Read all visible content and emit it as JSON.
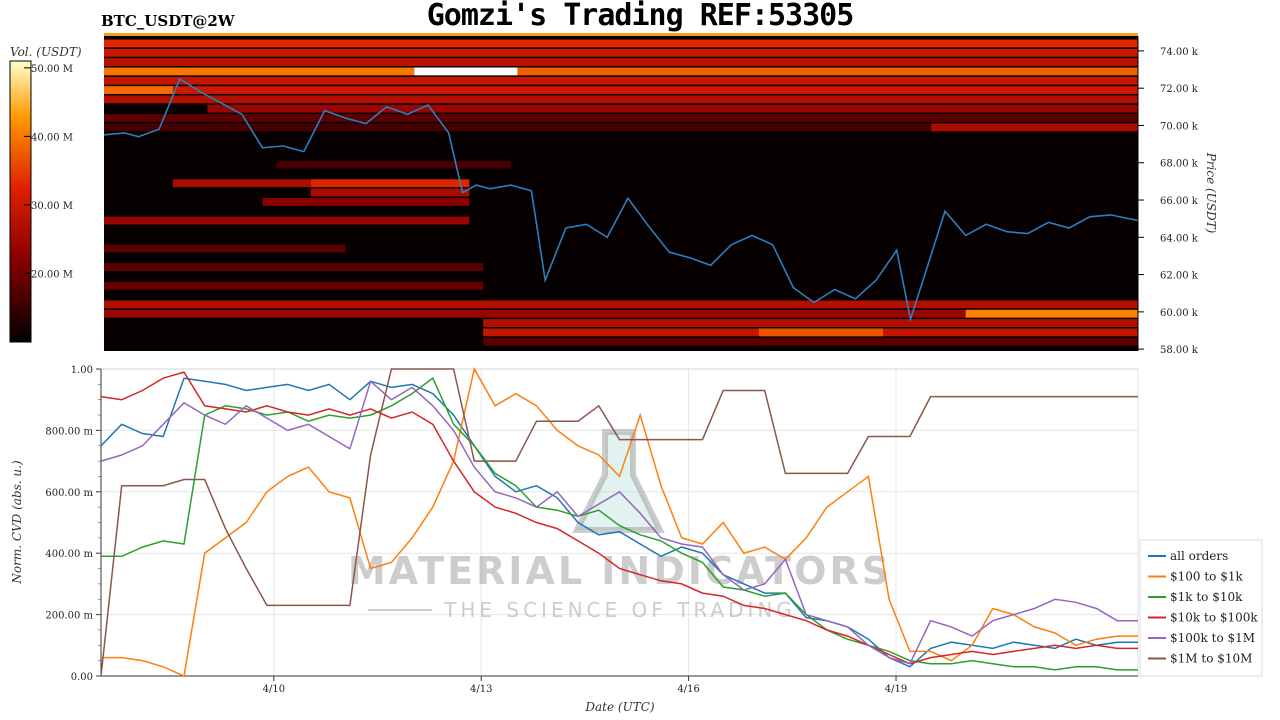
{
  "title": "Gomzi's Trading REF:53305",
  "pair_label": "BTC_USDT@2W",
  "watermark": {
    "line1": "MATERIAL INDICATORS",
    "line2": "THE SCIENCE OF TRADING"
  },
  "colors": {
    "all orders": "#1f77b4",
    "$100 to $1k": "#ff7f0e",
    "$1k to $10k": "#2ca02c",
    "$10k to $100k": "#d62728",
    "$100k to $1M": "#9467bd",
    "$1M to $10M": "#8c564b"
  },
  "chart_data": [
    {
      "type": "heatmap",
      "colorbar": {
        "label": "Vol. (USDT)",
        "ticks": [
          "20.00 M",
          "30.00 M",
          "40.00 M",
          "50.00 M"
        ],
        "tick_values": [
          20,
          30,
          40,
          50
        ],
        "range": [
          10,
          51
        ]
      },
      "ylabel": "Price (USDT)",
      "y_ticks": [
        "58.00 k",
        "60.00 k",
        "62.00 k",
        "64.00 k",
        "66.00 k",
        "68.00 k",
        "70.00 k",
        "72.00 k",
        "74.00 k"
      ],
      "y_tick_values": [
        58,
        60,
        62,
        64,
        66,
        68,
        70,
        72,
        74
      ],
      "ylim": [
        57.9,
        74.8
      ],
      "xlim": [
        7.5,
        22.5
      ],
      "bands": [
        {
          "p": 74.4,
          "t0": 7.5,
          "t1": 22.5,
          "v": 33
        },
        {
          "p": 73.9,
          "t0": 7.5,
          "t1": 22.5,
          "v": 30
        },
        {
          "p": 73.4,
          "t0": 7.5,
          "t1": 22.5,
          "v": 28
        },
        {
          "p": 72.9,
          "t0": 7.5,
          "t1": 12.0,
          "v": 40
        },
        {
          "p": 72.9,
          "t0": 12.0,
          "t1": 13.5,
          "v": 51
        },
        {
          "p": 72.9,
          "t0": 13.5,
          "t1": 22.5,
          "v": 38
        },
        {
          "p": 72.4,
          "t0": 7.5,
          "t1": 22.5,
          "v": 29
        },
        {
          "p": 71.9,
          "t0": 7.5,
          "t1": 8.5,
          "v": 39
        },
        {
          "p": 71.9,
          "t0": 8.5,
          "t1": 22.5,
          "v": 30
        },
        {
          "p": 71.4,
          "t0": 7.5,
          "t1": 22.5,
          "v": 27
        },
        {
          "p": 70.9,
          "t0": 9.0,
          "t1": 22.5,
          "v": 24
        },
        {
          "p": 70.4,
          "t0": 7.5,
          "t1": 22.5,
          "v": 18
        },
        {
          "p": 69.9,
          "t0": 7.5,
          "t1": 22.5,
          "v": 16
        },
        {
          "p": 69.9,
          "t0": 19.5,
          "t1": 22.5,
          "v": 26
        },
        {
          "p": 67.9,
          "t0": 10.0,
          "t1": 13.4,
          "v": 16
        },
        {
          "p": 66.9,
          "t0": 8.5,
          "t1": 10.5,
          "v": 26
        },
        {
          "p": 66.9,
          "t0": 10.5,
          "t1": 12.8,
          "v": 33
        },
        {
          "p": 66.4,
          "t0": 10.5,
          "t1": 12.8,
          "v": 26
        },
        {
          "p": 65.9,
          "t0": 9.8,
          "t1": 12.8,
          "v": 22
        },
        {
          "p": 64.9,
          "t0": 7.5,
          "t1": 12.8,
          "v": 24
        },
        {
          "p": 63.4,
          "t0": 7.5,
          "t1": 11.0,
          "v": 18
        },
        {
          "p": 62.4,
          "t0": 7.5,
          "t1": 13.0,
          "v": 18
        },
        {
          "p": 61.4,
          "t0": 7.5,
          "t1": 13.0,
          "v": 19
        },
        {
          "p": 60.4,
          "t0": 7.5,
          "t1": 22.5,
          "v": 27
        },
        {
          "p": 59.9,
          "t0": 7.5,
          "t1": 22.5,
          "v": 24
        },
        {
          "p": 59.9,
          "t0": 20.0,
          "t1": 22.5,
          "v": 41
        },
        {
          "p": 59.4,
          "t0": 13.0,
          "t1": 22.5,
          "v": 27
        },
        {
          "p": 58.9,
          "t0": 13.0,
          "t1": 22.5,
          "v": 29
        },
        {
          "p": 58.9,
          "t0": 17.0,
          "t1": 18.8,
          "v": 37
        },
        {
          "p": 58.4,
          "t0": 13.0,
          "t1": 22.5,
          "v": 18
        }
      ],
      "price": {
        "t": [
          7.5,
          7.8,
          8.0,
          8.3,
          8.6,
          8.9,
          9.2,
          9.5,
          9.8,
          10.1,
          10.4,
          10.7,
          11.0,
          11.3,
          11.6,
          11.9,
          12.2,
          12.5,
          12.7,
          12.9,
          13.1,
          13.4,
          13.7,
          13.9,
          14.2,
          14.5,
          14.8,
          15.1,
          15.4,
          15.7,
          16.0,
          16.3,
          16.6,
          16.9,
          17.2,
          17.5,
          17.8,
          18.1,
          18.4,
          18.7,
          19.0,
          19.2,
          19.4,
          19.7,
          20.0,
          20.3,
          20.6,
          20.9,
          21.2,
          21.5,
          21.8,
          22.1,
          22.5
        ],
        "v": [
          69.5,
          69.6,
          69.4,
          69.8,
          72.5,
          71.8,
          71.2,
          70.6,
          68.8,
          68.9,
          68.6,
          70.8,
          70.4,
          70.1,
          71.0,
          70.6,
          71.1,
          69.6,
          66.4,
          66.8,
          66.6,
          66.8,
          66.5,
          61.7,
          64.5,
          64.7,
          64.0,
          66.1,
          64.6,
          63.2,
          62.9,
          62.5,
          63.6,
          64.1,
          63.6,
          61.3,
          60.5,
          61.2,
          60.7,
          61.7,
          63.3,
          59.6,
          61.9,
          65.4,
          64.1,
          64.7,
          64.3,
          64.2,
          64.8,
          64.5,
          65.1,
          65.2,
          64.9
        ]
      }
    },
    {
      "type": "line",
      "xlabel": "Date (UTC)",
      "ylabel": "Norm. CVD (abs. u.)",
      "x_ticks": [
        "4/10",
        "4/13",
        "4/16",
        "4/19"
      ],
      "x_tick_values": [
        10,
        13,
        16,
        19
      ],
      "y_ticks": [
        "0.00",
        "200.00 m",
        "400.00 m",
        "600.00 m",
        "800.00 m",
        "1.00"
      ],
      "y_tick_values": [
        0,
        0.2,
        0.4,
        0.6,
        0.8,
        1.0
      ],
      "xlim": [
        7.5,
        22.5
      ],
      "ylim": [
        0,
        1.0
      ],
      "grid": true,
      "legend_position": "right",
      "x": [
        7.5,
        7.8,
        8.1,
        8.4,
        8.7,
        9.0,
        9.3,
        9.6,
        9.9,
        10.2,
        10.5,
        10.8,
        11.1,
        11.4,
        11.7,
        12.0,
        12.3,
        12.6,
        12.9,
        13.2,
        13.5,
        13.8,
        14.1,
        14.4,
        14.7,
        15.0,
        15.3,
        15.6,
        15.9,
        16.2,
        16.5,
        16.8,
        17.1,
        17.4,
        17.7,
        18.0,
        18.3,
        18.6,
        18.9,
        19.2,
        19.5,
        19.8,
        20.1,
        20.4,
        20.7,
        21.0,
        21.3,
        21.6,
        21.9,
        22.2,
        22.5
      ],
      "series": [
        {
          "name": "all orders",
          "values": [
            0.75,
            0.82,
            0.79,
            0.78,
            0.97,
            0.96,
            0.95,
            0.93,
            0.94,
            0.95,
            0.93,
            0.95,
            0.9,
            0.96,
            0.94,
            0.95,
            0.92,
            0.85,
            0.75,
            0.65,
            0.6,
            0.62,
            0.58,
            0.5,
            0.46,
            0.47,
            0.43,
            0.39,
            0.42,
            0.4,
            0.33,
            0.3,
            0.27,
            0.27,
            0.19,
            0.18,
            0.16,
            0.12,
            0.06,
            0.03,
            0.09,
            0.11,
            0.1,
            0.09,
            0.11,
            0.1,
            0.09,
            0.12,
            0.1,
            0.11,
            0.11
          ]
        },
        {
          "name": "$100 to $1k",
          "values": [
            0.06,
            0.06,
            0.05,
            0.03,
            0.0,
            0.4,
            0.45,
            0.5,
            0.6,
            0.65,
            0.68,
            0.6,
            0.58,
            0.35,
            0.37,
            0.45,
            0.55,
            0.7,
            1.0,
            0.88,
            0.92,
            0.88,
            0.8,
            0.75,
            0.72,
            0.65,
            0.85,
            0.62,
            0.45,
            0.43,
            0.5,
            0.4,
            0.42,
            0.38,
            0.45,
            0.55,
            0.6,
            0.65,
            0.25,
            0.08,
            0.08,
            0.05,
            0.1,
            0.22,
            0.2,
            0.16,
            0.14,
            0.1,
            0.12,
            0.13,
            0.13
          ]
        },
        {
          "name": "$1k to $10k",
          "values": [
            0.39,
            0.39,
            0.42,
            0.44,
            0.43,
            0.85,
            0.88,
            0.87,
            0.85,
            0.86,
            0.83,
            0.85,
            0.84,
            0.85,
            0.88,
            0.92,
            0.97,
            0.82,
            0.75,
            0.66,
            0.62,
            0.55,
            0.54,
            0.52,
            0.54,
            0.49,
            0.46,
            0.44,
            0.4,
            0.37,
            0.29,
            0.28,
            0.26,
            0.27,
            0.2,
            0.15,
            0.12,
            0.1,
            0.08,
            0.05,
            0.04,
            0.04,
            0.05,
            0.04,
            0.03,
            0.03,
            0.02,
            0.03,
            0.03,
            0.02,
            0.02
          ]
        },
        {
          "name": "$10k to $100k",
          "values": [
            0.91,
            0.9,
            0.93,
            0.97,
            0.99,
            0.88,
            0.87,
            0.86,
            0.88,
            0.86,
            0.85,
            0.87,
            0.85,
            0.87,
            0.84,
            0.86,
            0.82,
            0.7,
            0.6,
            0.55,
            0.53,
            0.5,
            0.48,
            0.44,
            0.4,
            0.35,
            0.33,
            0.31,
            0.3,
            0.27,
            0.26,
            0.23,
            0.22,
            0.2,
            0.18,
            0.15,
            0.13,
            0.1,
            0.07,
            0.04,
            0.06,
            0.07,
            0.08,
            0.07,
            0.08,
            0.09,
            0.1,
            0.09,
            0.1,
            0.09,
            0.09
          ]
        },
        {
          "name": "$100k to $1M",
          "values": [
            0.7,
            0.72,
            0.75,
            0.82,
            0.89,
            0.85,
            0.82,
            0.88,
            0.84,
            0.8,
            0.82,
            0.78,
            0.74,
            0.96,
            0.9,
            0.94,
            0.88,
            0.8,
            0.68,
            0.6,
            0.58,
            0.55,
            0.6,
            0.52,
            0.56,
            0.6,
            0.53,
            0.45,
            0.43,
            0.42,
            0.33,
            0.28,
            0.3,
            0.38,
            0.2,
            0.18,
            0.16,
            0.1,
            0.06,
            0.04,
            0.18,
            0.16,
            0.13,
            0.18,
            0.2,
            0.22,
            0.25,
            0.24,
            0.22,
            0.18,
            0.18
          ]
        },
        {
          "name": "$1M to $10M",
          "values": [
            0.0,
            0.62,
            0.62,
            0.62,
            0.64,
            0.64,
            0.48,
            0.35,
            0.23,
            0.23,
            0.23,
            0.23,
            0.23,
            0.72,
            1.0,
            1.0,
            1.0,
            1.0,
            0.7,
            0.7,
            0.7,
            0.83,
            0.83,
            0.83,
            0.88,
            0.77,
            0.77,
            0.77,
            0.77,
            0.77,
            0.93,
            0.93,
            0.93,
            0.66,
            0.66,
            0.66,
            0.66,
            0.78,
            0.78,
            0.78,
            0.91,
            0.91,
            0.91,
            0.91,
            0.91,
            0.91,
            0.91,
            0.91,
            0.91,
            0.91,
            0.91
          ]
        }
      ]
    }
  ]
}
